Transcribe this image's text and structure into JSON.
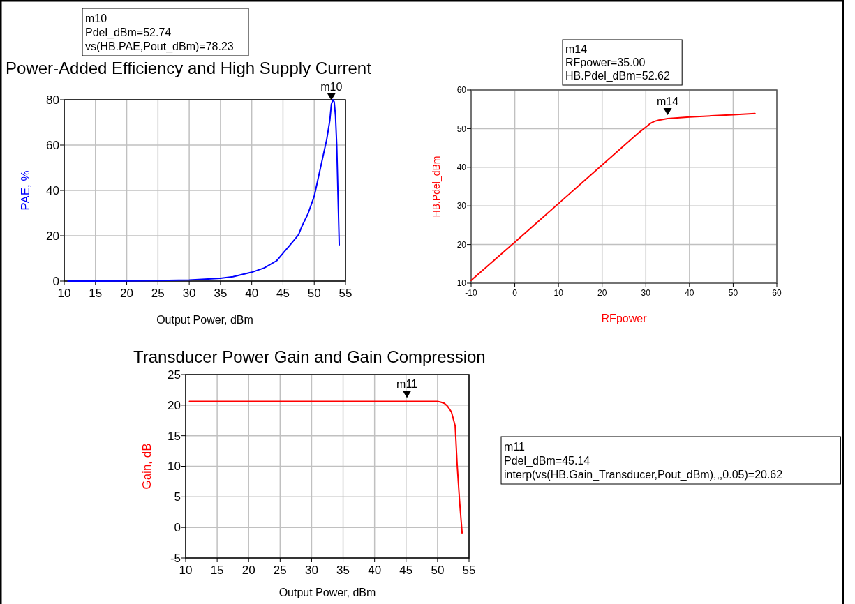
{
  "chart_data": [
    {
      "type": "line",
      "title": "Power-Added Efficiency and High Supply Current",
      "xlabel": "Output Power, dBm",
      "ylabel": "PAE, %",
      "xlim": [
        10,
        55
      ],
      "xticks": [
        10,
        15,
        20,
        25,
        30,
        35,
        40,
        45,
        50,
        55
      ],
      "ylim": [
        0,
        80
      ],
      "yticks": [
        0,
        20,
        40,
        60,
        80
      ],
      "grid": true,
      "series": [
        {
          "color": "#0000ff",
          "x": [
            10.6,
            15,
            20,
            25,
            30,
            33,
            35,
            37,
            40,
            42,
            44,
            45,
            46,
            47,
            47.5,
            48,
            49,
            50,
            51,
            52,
            52.5,
            52.74,
            53,
            53.2,
            53.4,
            53.6,
            53.8,
            54
          ],
          "values": [
            0,
            0,
            0.1,
            0.2,
            0.5,
            0.9,
            1.2,
            1.9,
            3.9,
            5.8,
            9,
            12.3,
            15.5,
            18.8,
            20.5,
            24,
            29.7,
            37.4,
            50,
            62.5,
            71,
            78,
            80,
            79,
            73,
            60,
            38,
            16
          ]
        }
      ],
      "annotations": [
        {
          "text": "m10",
          "x": 52.74,
          "y": 78.23
        },
        "m10",
        "Pdel_dBm=52.74",
        "vs(HB.PAE,Pout_dBm)=78.23"
      ]
    },
    {
      "type": "line",
      "xlabel": "RFpower",
      "ylabel": "HB.Pdel_dBm",
      "xlim": [
        -10,
        60
      ],
      "xticks": [
        -10,
        0,
        10,
        20,
        30,
        40,
        50,
        60
      ],
      "ylim": [
        10,
        60
      ],
      "yticks": [
        10,
        20,
        30,
        40,
        50,
        60
      ],
      "grid": true,
      "series": [
        {
          "color": "#ff0000",
          "x": [
            -10,
            0,
            10,
            20,
            28,
            30,
            31,
            32,
            33,
            35,
            40,
            45,
            50,
            55
          ],
          "values": [
            10.7,
            20.6,
            30.6,
            40.6,
            48.6,
            50.4,
            51.3,
            51.9,
            52.2,
            52.6,
            53,
            53.3,
            53.6,
            53.9
          ]
        }
      ],
      "annotations": [
        {
          "text": "m14",
          "x": 35,
          "y": 52.62
        },
        "m14",
        "RFpower=35.00",
        "HB.Pdel_dBm=52.62"
      ]
    },
    {
      "type": "line",
      "title": "Transducer Power Gain and Gain Compression",
      "xlabel": "Output Power, dBm",
      "ylabel": "Gain, dB",
      "xlim": [
        10,
        55
      ],
      "xticks": [
        10,
        15,
        20,
        25,
        30,
        35,
        40,
        45,
        50,
        55
      ],
      "ylim": [
        -5,
        25
      ],
      "yticks": [
        -5,
        0,
        5,
        10,
        15,
        20,
        25
      ],
      "grid": true,
      "series": [
        {
          "color": "#ff0000",
          "x": [
            10.6,
            20,
            30,
            40,
            45.14,
            50,
            50.5,
            51.08,
            51.6,
            52.2,
            52.8,
            53.1,
            53.5,
            53.9
          ],
          "values": [
            20.6,
            20.6,
            20.6,
            20.6,
            20.6,
            20.6,
            20.5,
            20.3,
            19.8,
            18.9,
            16.6,
            10.5,
            4.3,
            -0.9
          ]
        }
      ],
      "annotations": [
        {
          "text": "m11",
          "x": 45.14,
          "y": 20.62
        },
        "m11",
        "Pdel_dBm=45.14",
        "interp(vs(HB.Gain_Transducer,Pout_dBm),,,0.05)=20.62"
      ]
    }
  ]
}
